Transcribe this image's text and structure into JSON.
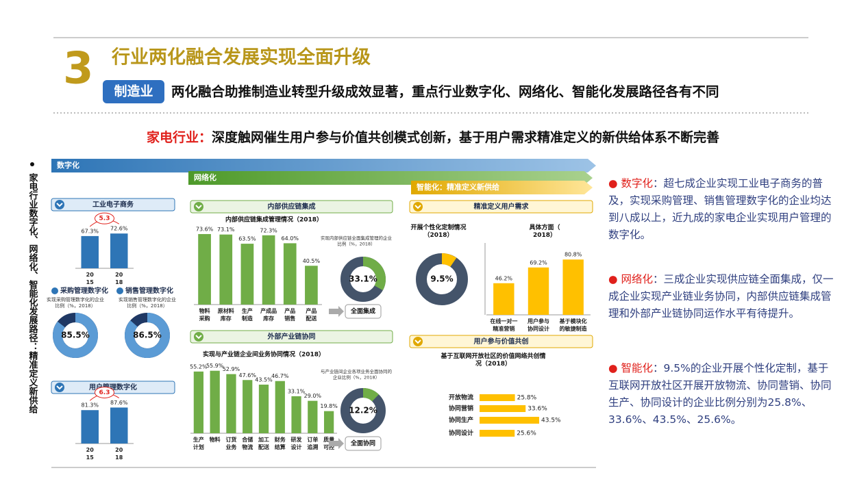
{
  "header": {
    "number": "3",
    "title": "行业两化融合发展实现全面升级",
    "badge": "制造业",
    "subtitle": "两化融合助推制造业转型升级成效显著，重点行业数字化、网络化、智能化发展路径各有不同"
  },
  "headline": {
    "label": "家电行业：",
    "text": "深度触网催生用户参与价值共创模式创新，基于用户需求精准定义的新供给体系不断完善"
  },
  "side_title": "家电行业数字化、网络化、智能化发展路径：精准定义新供给",
  "stages": [
    "数字化",
    "网络化",
    "智能化：精准定义新供给"
  ],
  "notes": [
    {
      "label": "数字化",
      "text": "：超七成企业实现工业电子商务的普及，实现采购管理、销售管理数字化的企业均达到八成以上，近九成的家电企业实现用户管理的数字化。"
    },
    {
      "label": "网络化",
      "text": "：三成企业实现供应链全面集成，仅一成企业实现产业链业务协同，内部供应链集成管理和外部产业链协同运作水平有待提升。"
    },
    {
      "label": "智能化",
      "text": "：9.5%的企业开展个性化定制，基于互联网开放社区开展开放物流、协同营销、协同生产、协同设计的企业比例分别为25.8%、33.6%、43.5%、25.6%。"
    }
  ],
  "chart_data": [
    {
      "type": "bar",
      "title": "工业电子商务",
      "categories": [
        "2015",
        "2018"
      ],
      "values": [
        67.3,
        72.6
      ],
      "value_labels": [
        "67.3%",
        "72.6%"
      ],
      "annotation": "5.3",
      "ylim": [
        0,
        100
      ],
      "color": "#2e75b6"
    },
    {
      "type": "donut",
      "title": "采购管理数字化",
      "note": "实现采购管理数字化的企业比例（%，2018）",
      "values": [
        85.5
      ],
      "value_labels": [
        "85.5%"
      ],
      "ylim": [
        0,
        100
      ],
      "color": "#5b9bd5",
      "track": "#1f3864"
    },
    {
      "type": "donut",
      "title": "销售管理数字化",
      "note": "实现销售管理数字化的企业比例（%，2018）",
      "values": [
        86.5
      ],
      "value_labels": [
        "86.5%"
      ],
      "ylim": [
        0,
        100
      ],
      "color": "#5b9bd5",
      "track": "#1f3864"
    },
    {
      "type": "bar",
      "title": "用户管理数字化",
      "categories": [
        "2015",
        "2018"
      ],
      "values": [
        81.3,
        87.6
      ],
      "value_labels": [
        "81.3%",
        "87.6%"
      ],
      "annotation": "6.3",
      "ylim": [
        0,
        100
      ],
      "color": "#2e75b6"
    },
    {
      "type": "bar",
      "title": "内部供应链集成",
      "subtitle": "内部供应链集成管理情况（2018）",
      "categories": [
        "物料采购",
        "原材料库存",
        "生产制造",
        "产成品库存",
        "产品销售",
        "产品配送"
      ],
      "values": [
        73.6,
        73.1,
        63.5,
        72.3,
        64.0,
        40.5
      ],
      "value_labels": [
        "73.6%",
        "73.1%",
        "63.5%",
        "72.3%",
        "64.0%",
        "40.5%"
      ],
      "ylim": [
        0,
        80
      ],
      "color": "#70ad47"
    },
    {
      "type": "donut",
      "title": "全面集成",
      "note": "实现内部供应链全面集成管理的企业比例（%，2018）",
      "values": [
        33.1
      ],
      "value_labels": [
        "33.1%"
      ],
      "ylim": [
        0,
        100
      ],
      "color": "#70ad47",
      "track": "#44546a"
    },
    {
      "type": "bar",
      "title": "外部产业链协同",
      "subtitle": "实现与产业链企业间业务协同情况（2018）",
      "categories": [
        "生产计划",
        "物料",
        "订货业务",
        "合储物流",
        "加工配送",
        "财务结算",
        "研发设计",
        "订单追溯",
        "质量可控"
      ],
      "values": [
        55.2,
        55.9,
        52.9,
        47.6,
        43.5,
        46.7,
        33.1,
        29.0,
        19.8
      ],
      "value_labels": [
        "55.2%",
        "55.9%",
        "52.9%",
        "47.6%",
        "43.5%",
        "46.7%",
        "33.1%",
        "29.0%",
        "19.8%"
      ],
      "ylim": [
        0,
        60
      ],
      "color": "#70ad47"
    },
    {
      "type": "donut",
      "title": "全面协同",
      "note": "与产业链间企业各项业务全面协同的企业比例（%，2018）",
      "values": [
        12.2
      ],
      "value_labels": [
        "12.2%"
      ],
      "ylim": [
        0,
        100
      ],
      "color": "#70ad47",
      "track": "#44546a"
    },
    {
      "type": "donut",
      "title": "精准定义用户需求",
      "subtitle": "开展个性化定制情况（2018）",
      "values": [
        9.5
      ],
      "value_labels": [
        "9.5%"
      ],
      "ylim": [
        0,
        100
      ],
      "color": "#ffc000",
      "track": "#44546a"
    },
    {
      "type": "bar",
      "subtitle": "具体方面（2018）",
      "categories": [
        "在线一对一精准营销",
        "用户参与协同设计",
        "基于模块化的敏捷制造"
      ],
      "values": [
        46.2,
        69.2,
        80.8
      ],
      "value_labels": [
        "46.2%",
        "69.2%",
        "80.8%"
      ],
      "ylim": [
        0,
        90
      ],
      "color": "#ffc000"
    },
    {
      "type": "hbar",
      "title": "用户参与价值共创",
      "subtitle": "基于互联网开放社区的价值网络共创情况（2018）",
      "categories": [
        "开放物流",
        "协同营销",
        "协同生产",
        "协同设计"
      ],
      "values": [
        25.8,
        33.6,
        43.5,
        25.6
      ],
      "value_labels": [
        "25.8%",
        "33.6%",
        "43.5%",
        "25.6%"
      ],
      "ylim": [
        0,
        50
      ],
      "color": "#ffc000"
    }
  ]
}
